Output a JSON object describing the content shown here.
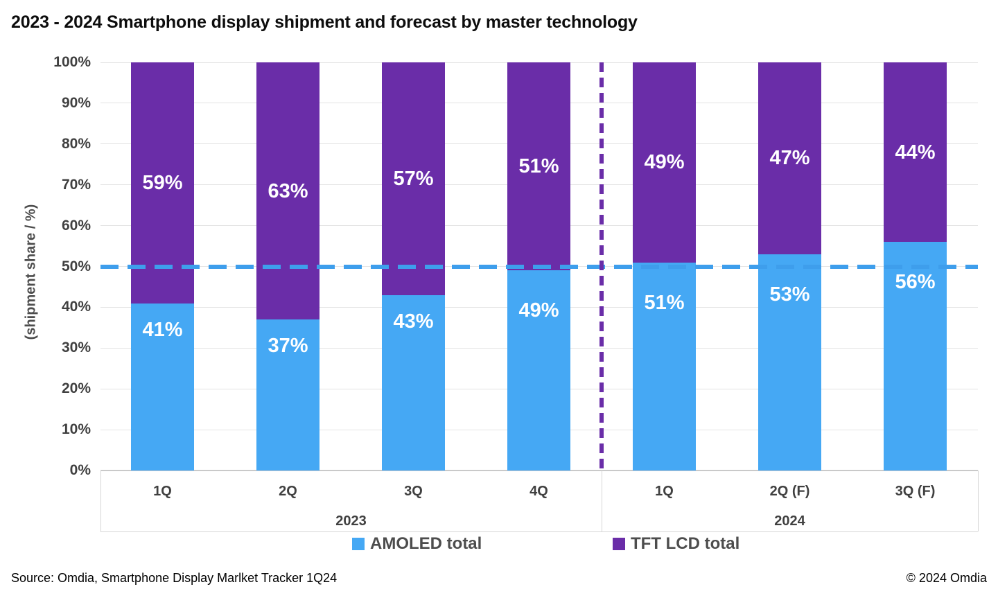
{
  "title": "2023 - 2024 Smartphone display shipment and forecast by master technology",
  "source_note": "Source: Omdia, Smartphone Display Marlket Tracker 1Q24",
  "copyright_note": "© 2024 Omdia",
  "colors": {
    "amoled": "#45a8f4",
    "tft_lcd": "#6a2da8",
    "reference_line": "#3e9eec",
    "forecast_divider": "#6a2da8",
    "gridline": "#e3e3e3",
    "axis_line": "#c9c9c9",
    "tick_text": "#404040",
    "legend_text": "#4d4d4d",
    "data_label_text": "#ffffff"
  },
  "chart_data": {
    "type": "bar",
    "stacked": true,
    "title": "2023 - 2024 Smartphone display shipment and forecast by master technology",
    "xlabel": "",
    "ylabel": "(shipment share / %)",
    "ylim": [
      0,
      100
    ],
    "ytick_step": 10,
    "ytick_suffix": "%",
    "grid": true,
    "categories": [
      "1Q",
      "2Q",
      "3Q",
      "4Q",
      "1Q",
      "2Q (F)",
      "3Q (F)"
    ],
    "category_groups": [
      {
        "label": "2023",
        "count": 4
      },
      {
        "label": "2024",
        "count": 3
      }
    ],
    "series": [
      {
        "name": "AMOLED total",
        "color": "#45a8f4",
        "values": [
          41,
          37,
          43,
          49,
          51,
          53,
          56
        ]
      },
      {
        "name": "TFT LCD total",
        "color": "#6a2da8",
        "values": [
          59,
          63,
          57,
          51,
          49,
          47,
          44
        ]
      }
    ],
    "data_labels": {
      "show": true,
      "suffix": "%",
      "color": "#ffffff"
    },
    "reference_line": {
      "axis": "y",
      "value": 50,
      "style": "dashed",
      "color": "#3e9eec"
    },
    "forecast_divider": {
      "axis": "x",
      "between_categories": [
        "4Q",
        "1Q"
      ],
      "style": "dashed",
      "color": "#6a2da8"
    },
    "legend_position": "bottom"
  }
}
